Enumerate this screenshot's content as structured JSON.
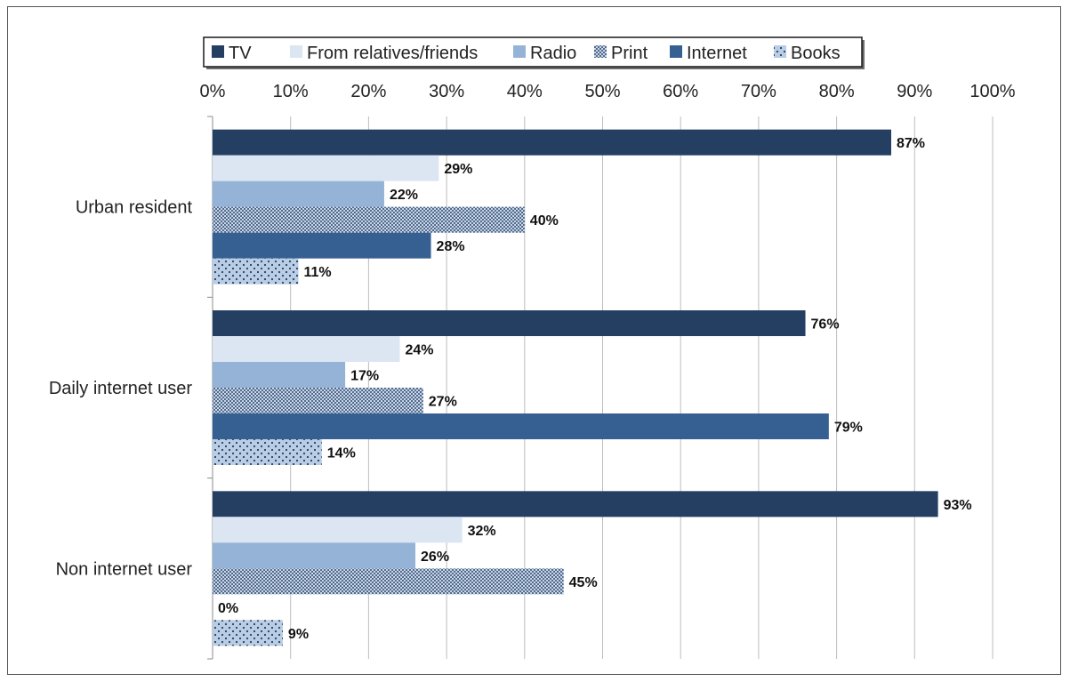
{
  "chart_data": {
    "type": "bar",
    "orientation": "horizontal",
    "title": "",
    "xlabel": "",
    "ylabel": "",
    "xlim": [
      0,
      100
    ],
    "x_ticks": [
      "0%",
      "10%",
      "20%",
      "30%",
      "40%",
      "50%",
      "60%",
      "70%",
      "80%",
      "90%",
      "100%"
    ],
    "x_axis_position": "top",
    "grid": true,
    "legend_position": "top",
    "categories": [
      "Urban resident",
      "Daily internet user",
      "Non internet user"
    ],
    "series": [
      {
        "name": "TV",
        "color": "#253f63",
        "pattern": "solid",
        "values": [
          87,
          76,
          93
        ],
        "labels": [
          "87%",
          "76%",
          "93%"
        ]
      },
      {
        "name": "From relatives/friends",
        "color": "#dce6f2",
        "pattern": "solid",
        "values": [
          29,
          24,
          32
        ],
        "labels": [
          "29%",
          "24%",
          "32%"
        ]
      },
      {
        "name": "Radio",
        "color": "#95b3d7",
        "pattern": "solid",
        "values": [
          22,
          17,
          26
        ],
        "labels": [
          "22%",
          "17%",
          "26%"
        ]
      },
      {
        "name": "Print",
        "color": "#8aa5c8",
        "pattern": "dense-dots",
        "values": [
          40,
          27,
          45
        ],
        "labels": [
          "40%",
          "27%",
          "45%"
        ]
      },
      {
        "name": "Internet",
        "color": "#376092",
        "pattern": "solid",
        "values": [
          28,
          79,
          0
        ],
        "labels": [
          "28%",
          "79%",
          "0%"
        ]
      },
      {
        "name": "Books",
        "color": "#b9cde5",
        "pattern": "sparse-dots",
        "values": [
          11,
          14,
          9
        ],
        "labels": [
          "11%",
          "14%",
          "9%"
        ]
      }
    ]
  }
}
